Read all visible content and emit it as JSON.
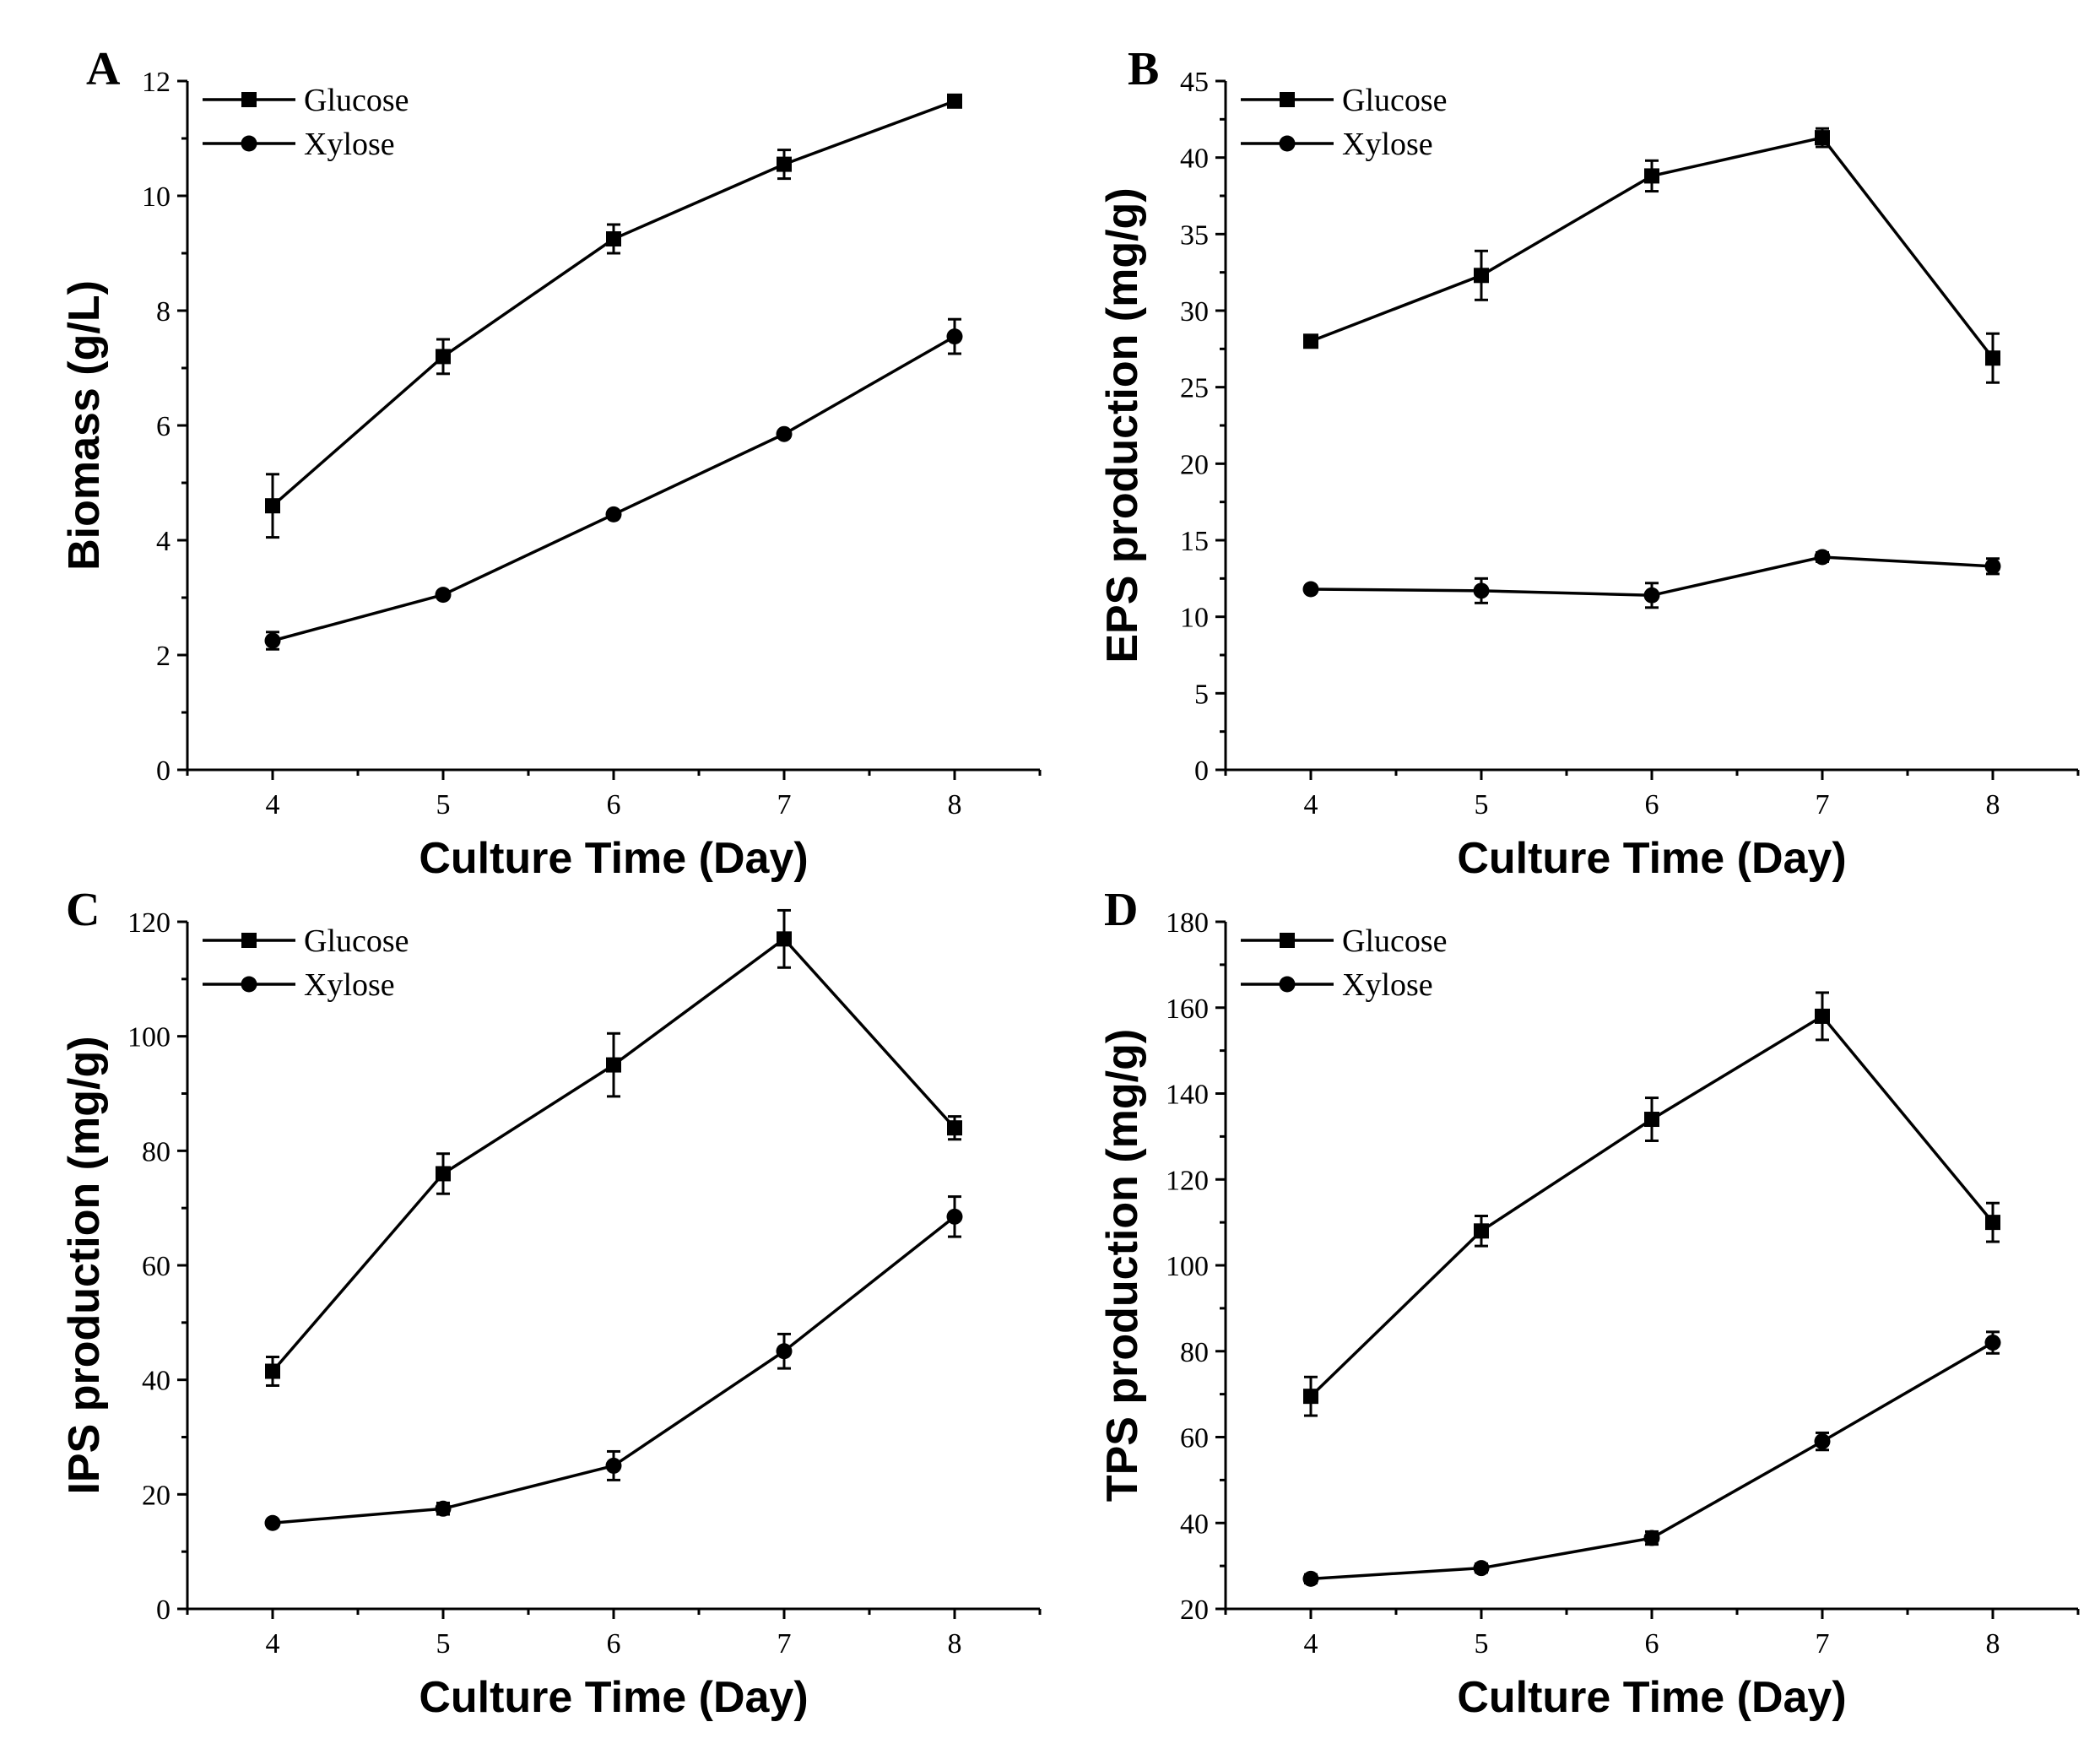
{
  "chart_data": [
    {
      "type": "line",
      "panel": "A",
      "title": "",
      "xlabel": "Culture Time (Day)",
      "ylabel": "Biomass (g/L)",
      "x": [
        4,
        5,
        6,
        7,
        8
      ],
      "xlim": [
        3.5,
        8.5
      ],
      "ylim": [
        0,
        12
      ],
      "yticks": [
        0,
        2,
        4,
        6,
        8,
        10,
        12
      ],
      "xticks": [
        4,
        5,
        6,
        7,
        8
      ],
      "legend": "top-left",
      "series": [
        {
          "name": "Glucose",
          "marker": "square",
          "values": [
            4.6,
            7.2,
            9.25,
            10.55,
            11.65
          ],
          "errors": [
            0.55,
            0.3,
            0.25,
            0.25,
            0.1
          ]
        },
        {
          "name": "Xylose",
          "marker": "circle",
          "values": [
            2.25,
            3.05,
            4.45,
            5.85,
            7.55
          ],
          "errors": [
            0.15,
            0.05,
            0.05,
            0.05,
            0.3
          ]
        }
      ]
    },
    {
      "type": "line",
      "panel": "B",
      "title": "",
      "xlabel": "Culture Time (Day)",
      "ylabel": "EPS production (mg/g)",
      "x": [
        4,
        5,
        6,
        7,
        8
      ],
      "xlim": [
        3.5,
        8.5
      ],
      "ylim": [
        0,
        45
      ],
      "yticks": [
        0,
        5,
        10,
        15,
        20,
        25,
        30,
        35,
        40,
        45
      ],
      "xticks": [
        4,
        5,
        6,
        7,
        8
      ],
      "legend": "top-left",
      "series": [
        {
          "name": "Glucose",
          "marker": "square",
          "values": [
            28.0,
            32.3,
            38.8,
            41.3,
            26.9
          ],
          "errors": [
            0.3,
            1.6,
            1.0,
            0.6,
            1.6
          ]
        },
        {
          "name": "Xylose",
          "marker": "circle",
          "values": [
            11.8,
            11.7,
            11.4,
            13.9,
            13.3
          ],
          "errors": [
            0.2,
            0.8,
            0.8,
            0.3,
            0.5
          ]
        }
      ]
    },
    {
      "type": "line",
      "panel": "C",
      "title": "",
      "xlabel": "Culture Time (Day)",
      "ylabel": "IPS production (mg/g)",
      "x": [
        4,
        5,
        6,
        7,
        8
      ],
      "xlim": [
        3.5,
        8.5
      ],
      "ylim": [
        0,
        120
      ],
      "yticks": [
        0,
        20,
        40,
        60,
        80,
        100,
        120
      ],
      "xticks": [
        4,
        5,
        6,
        7,
        8
      ],
      "legend": "top-left",
      "series": [
        {
          "name": "Glucose",
          "marker": "square",
          "values": [
            41.5,
            76.0,
            95.0,
            117.0,
            84.0
          ],
          "errors": [
            2.5,
            3.5,
            5.5,
            5.0,
            2.0
          ]
        },
        {
          "name": "Xylose",
          "marker": "circle",
          "values": [
            15.0,
            17.5,
            25.0,
            45.0,
            68.5
          ],
          "errors": [
            0.5,
            1.0,
            2.5,
            3.0,
            3.5
          ]
        }
      ]
    },
    {
      "type": "line",
      "panel": "D",
      "title": "",
      "xlabel": "Culture Time (Day)",
      "ylabel": "TPS production (mg/g)",
      "x": [
        4,
        5,
        6,
        7,
        8
      ],
      "xlim": [
        3.5,
        8.5
      ],
      "ylim": [
        20,
        180
      ],
      "yticks": [
        20,
        40,
        60,
        80,
        100,
        120,
        140,
        160,
        180
      ],
      "xticks": [
        4,
        5,
        6,
        7,
        8
      ],
      "legend": "top-left",
      "series": [
        {
          "name": "Glucose",
          "marker": "square",
          "values": [
            69.5,
            108.0,
            134.0,
            158.0,
            110.0
          ],
          "errors": [
            4.5,
            3.5,
            5.0,
            5.5,
            4.5
          ]
        },
        {
          "name": "Xylose",
          "marker": "circle",
          "values": [
            27.0,
            29.5,
            36.5,
            59.0,
            82.0
          ],
          "errors": [
            1.0,
            1.0,
            1.5,
            2.0,
            2.5
          ]
        }
      ]
    }
  ]
}
